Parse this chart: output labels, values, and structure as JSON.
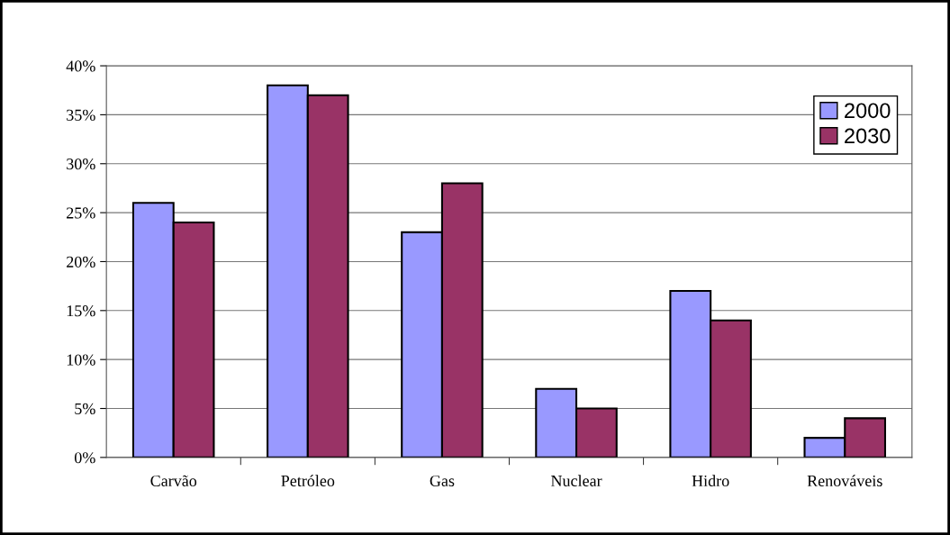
{
  "chart_data": {
    "type": "bar",
    "categories": [
      "Carvão",
      "Petróleo",
      "Gas",
      "Nuclear",
      "Hidro",
      "Renováveis"
    ],
    "series": [
      {
        "name": "2000",
        "color": "#9999ff",
        "values": [
          26,
          38,
          23,
          7,
          17,
          2
        ]
      },
      {
        "name": "2030",
        "color": "#993366",
        "values": [
          24,
          37,
          28,
          5,
          14,
          4
        ]
      }
    ],
    "ylim": [
      0,
      40
    ],
    "yticks": [
      {
        "value": 0,
        "label": "0%"
      },
      {
        "value": 5,
        "label": "5%"
      },
      {
        "value": 10,
        "label": "10%"
      },
      {
        "value": 15,
        "label": "15%"
      },
      {
        "value": 20,
        "label": "20%"
      },
      {
        "value": 25,
        "label": "25%"
      },
      {
        "value": 30,
        "label": "30%"
      },
      {
        "value": 35,
        "label": "35%"
      },
      {
        "value": 40,
        "label": "40%"
      }
    ],
    "grid": "y",
    "legend": "top right"
  }
}
